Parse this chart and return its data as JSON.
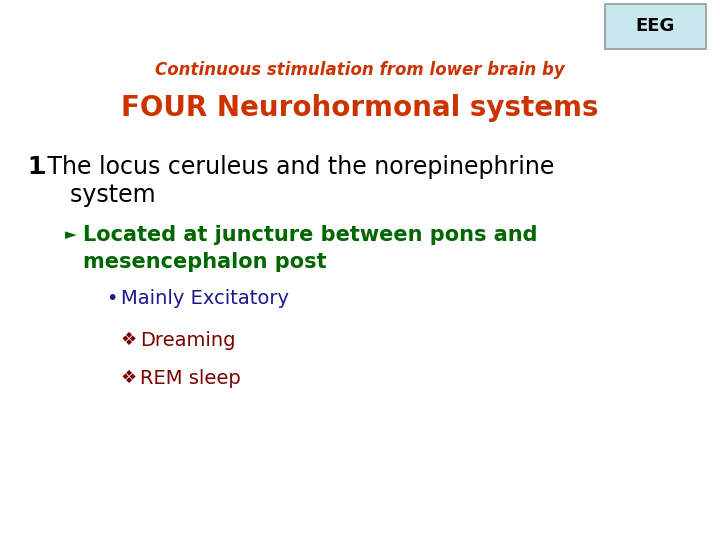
{
  "background_color": "#ffffff",
  "eeg_box_color": "#c8e8f0",
  "eeg_text": "EEG",
  "subtitle": "Continuous stimulation from lower brain by",
  "subtitle_color": "#cc3300",
  "title": "FOUR Neurohormonal systems",
  "title_color": "#cc3300",
  "line1_num": "1",
  "line1_text": ".The locus ceruleus and the norepinephrine",
  "line1b_text": "    system",
  "line1_color": "#000000",
  "arrow": "►",
  "bullet1_text": "Located at juncture between pons and",
  "bullet1_text2": "mesencephalon post",
  "bullet1_color": "#006600",
  "dot": "•",
  "bullet2_text": "Mainly Excitatory",
  "bullet2_color": "#1a1a8c",
  "diamond": "❖",
  "bullet3_text1": "Dreaming",
  "bullet3_text2": "REM sleep",
  "bullet3_color": "#7b0000"
}
